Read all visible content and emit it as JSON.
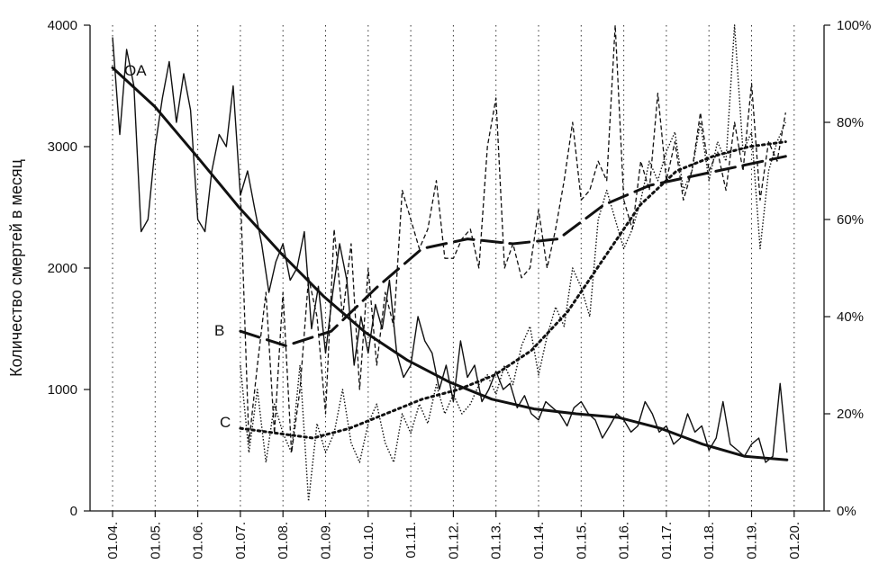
{
  "chart_data": {
    "type": "line",
    "title": "",
    "ylabel": "Количество смертей в месяц",
    "y2label": "",
    "ylim": [
      0,
      4000
    ],
    "y2lim": [
      0,
      100
    ],
    "yticks": [
      "0",
      "1000",
      "2000",
      "3000",
      "4000"
    ],
    "y2ticks": [
      "0%",
      "20%",
      "40%",
      "60%",
      "80%",
      "100%"
    ],
    "xticks": [
      "01.04.",
      "01.05.",
      "01.06.",
      "01.07.",
      "01.08.",
      "01.09.",
      "01.10.",
      "01.11.",
      "01.12.",
      "01.13.",
      "01.14.",
      "01.15.",
      "01.16.",
      "01.17.",
      "01.18.",
      "01.19.",
      "01.20."
    ],
    "x_start": "01.04.",
    "grid": "vertical dotted at each x tick",
    "series": [
      {
        "name": "OA",
        "axis": "left",
        "style": "solid-thin",
        "x": [
          0,
          0.17,
          0.33,
          0.5,
          0.67,
          0.83,
          1,
          1.17,
          1.33,
          1.5,
          1.67,
          1.83,
          2,
          2.17,
          2.33,
          2.5,
          2.67,
          2.83,
          3,
          3.17,
          3.33,
          3.5,
          3.67,
          3.83,
          4,
          4.17,
          4.33,
          4.5,
          4.67,
          4.83,
          5,
          5.17,
          5.33,
          5.5,
          5.67,
          5.83,
          6,
          6.17,
          6.33,
          6.5,
          6.67,
          6.83,
          7,
          7.17,
          7.33,
          7.5,
          7.67,
          7.83,
          8,
          8.17,
          8.33,
          8.5,
          8.67,
          8.83,
          9,
          9.17,
          9.33,
          9.5,
          9.67,
          9.83,
          10,
          10.17,
          10.33,
          10.5,
          10.67,
          10.83,
          11,
          11.17,
          11.33,
          11.5,
          11.67,
          11.83,
          12,
          12.17,
          12.33,
          12.5,
          12.67,
          12.83,
          13,
          13.17,
          13.33,
          13.5,
          13.67,
          13.83,
          14,
          14.17,
          14.33,
          14.5,
          14.67,
          14.83,
          15,
          15.17,
          15.33,
          15.5,
          15.67,
          15.83
        ],
        "values": [
          3900,
          3100,
          3800,
          3500,
          2300,
          2400,
          3000,
          3400,
          3700,
          3200,
          3600,
          3300,
          2400,
          2300,
          2800,
          3100,
          3000,
          3500,
          2600,
          2800,
          2500,
          2200,
          1800,
          2050,
          2200,
          1900,
          2000,
          2300,
          1500,
          1850,
          1300,
          1800,
          2200,
          1900,
          1200,
          1600,
          1300,
          1700,
          1500,
          1900,
          1300,
          1100,
          1200,
          1600,
          1400,
          1300,
          1000,
          1200,
          900,
          1400,
          1100,
          1200,
          900,
          1000,
          1150,
          1000,
          1050,
          850,
          950,
          800,
          750,
          900,
          850,
          800,
          700,
          850,
          900,
          800,
          750,
          600,
          700,
          800,
          750,
          650,
          700,
          900,
          800,
          650,
          700,
          550,
          600,
          800,
          650,
          700,
          500,
          600,
          900,
          550,
          500,
          450,
          550,
          600,
          400,
          450,
          1050,
          480
        ],
        "trend": [
          3650,
          3330,
          2920,
          2500,
          2120,
          1770,
          1470,
          1240,
          1060,
          920,
          840,
          800,
          770,
          680,
          550,
          450,
          420
        ]
      },
      {
        "name": "B",
        "axis": "right",
        "style": "dashed-thin",
        "x": [
          3,
          3.2,
          3.4,
          3.6,
          3.8,
          4,
          4.2,
          4.4,
          4.6,
          4.8,
          5,
          5.2,
          5.4,
          5.6,
          5.8,
          6,
          6.2,
          6.4,
          6.6,
          6.8,
          7,
          7.2,
          7.4,
          7.6,
          7.8,
          8,
          8.2,
          8.4,
          8.6,
          8.8,
          9,
          9.2,
          9.4,
          9.6,
          9.8,
          10,
          10.2,
          10.4,
          10.6,
          10.8,
          11,
          11.2,
          11.4,
          11.6,
          11.8,
          12,
          12.2,
          12.4,
          12.6,
          12.8,
          13,
          13.2,
          13.4,
          13.6,
          13.8,
          14,
          14.2,
          14.4,
          14.6,
          14.8,
          15,
          15.2,
          15.4,
          15.6,
          15.8
        ],
        "values": [
          66,
          14,
          30,
          45,
          16,
          45,
          12,
          25,
          48,
          40,
          20,
          58,
          40,
          55,
          25,
          50,
          30,
          45,
          38,
          66,
          60,
          54,
          58,
          68,
          52,
          52,
          56,
          58,
          50,
          75,
          85,
          50,
          55,
          48,
          50,
          62,
          50,
          58,
          68,
          80,
          64,
          66,
          72,
          68,
          100,
          64,
          58,
          72,
          66,
          86,
          68,
          76,
          64,
          70,
          82,
          70,
          74,
          66,
          80,
          70,
          88,
          64,
          76,
          72,
          82
        ],
        "trend": [
          37,
          34,
          37,
          46,
          54,
          56,
          55,
          56,
          63,
          67,
          69,
          71,
          73
        ]
      },
      {
        "name": "C",
        "axis": "right",
        "style": "dotted-thin",
        "x": [
          3,
          3.2,
          3.4,
          3.6,
          3.8,
          4,
          4.2,
          4.4,
          4.6,
          4.8,
          5,
          5.2,
          5.4,
          5.6,
          5.8,
          6,
          6.2,
          6.4,
          6.6,
          6.8,
          7,
          7.2,
          7.4,
          7.6,
          7.8,
          8,
          8.2,
          8.4,
          8.6,
          8.8,
          9,
          9.2,
          9.4,
          9.6,
          9.8,
          10,
          10.2,
          10.4,
          10.6,
          10.8,
          11,
          11.2,
          11.4,
          11.6,
          11.8,
          12,
          12.2,
          12.4,
          12.6,
          12.8,
          13,
          13.2,
          13.4,
          13.6,
          13.8,
          14,
          14.2,
          14.4,
          14.6,
          14.8,
          15,
          15.2,
          15.4,
          15.6,
          15.8
        ],
        "values": [
          30,
          12,
          25,
          10,
          22,
          16,
          12,
          30,
          2,
          18,
          12,
          16,
          25,
          14,
          10,
          18,
          22,
          14,
          10,
          20,
          16,
          22,
          18,
          26,
          20,
          24,
          20,
          22,
          26,
          28,
          24,
          30,
          26,
          34,
          38,
          28,
          36,
          42,
          38,
          50,
          46,
          40,
          60,
          66,
          60,
          54,
          58,
          64,
          72,
          68,
          74,
          78,
          66,
          70,
          80,
          68,
          76,
          72,
          100,
          74,
          78,
          54,
          70,
          76,
          80
        ],
        "trend": [
          17,
          16,
          15,
          17,
          20,
          23,
          25,
          28,
          33,
          41,
          52,
          63,
          70,
          73,
          75,
          76
        ]
      }
    ],
    "series_labels": [
      "OA",
      "B",
      "C"
    ]
  }
}
